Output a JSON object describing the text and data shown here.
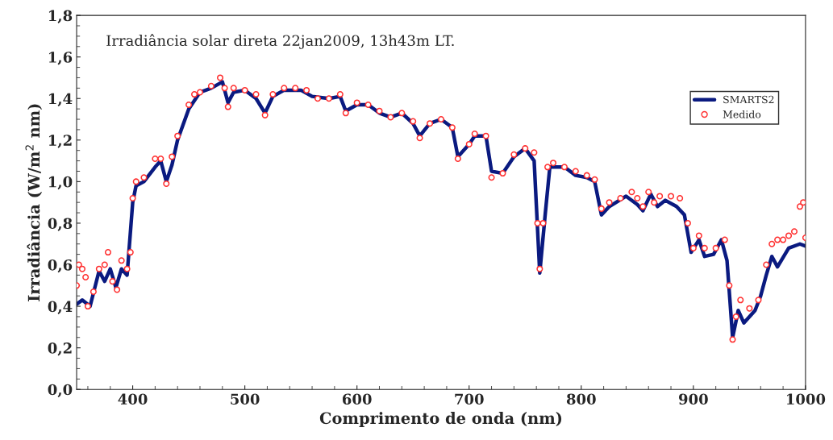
{
  "chart_data": {
    "type": "line",
    "title": "Irradiância solar direta 22jan2009, 13h43m LT.",
    "xlabel": "Comprimento de onda (nm)",
    "ylabel": "Irradiância (W/m$^{2}$ nm)",
    "xlim": [
      350,
      1000
    ],
    "xticks": [
      400,
      500,
      600,
      700,
      800,
      900,
      1000
    ],
    "ylim": [
      0,
      1.8
    ],
    "yticks": [
      {
        "value": 0,
        "label": "0,0"
      },
      {
        "value": 0.2,
        "label": "0,2"
      },
      {
        "value": 0.4,
        "label": "0,4"
      },
      {
        "value": 0.6,
        "label": "0,6"
      },
      {
        "value": 0.8,
        "label": "0,8"
      },
      {
        "value": 1.0,
        "label": "1,0"
      },
      {
        "value": 1.2,
        "label": "1,2"
      },
      {
        "value": 1.4,
        "label": "1,4"
      },
      {
        "value": 1.6,
        "label": "1,6"
      },
      {
        "value": 1.8,
        "label": "1,8"
      }
    ],
    "grid": false,
    "legend": "top right",
    "series": [
      {
        "name": "SMARTS2",
        "color": "#0a1a80",
        "line_style": "solid",
        "x": [
          350,
          355,
          362,
          370,
          375,
          380,
          385,
          390,
          395,
          400,
          403,
          410,
          420,
          425,
          430,
          435,
          440,
          450,
          460,
          470,
          480,
          485,
          490,
          500,
          510,
          518,
          525,
          535,
          550,
          560,
          575,
          585,
          590,
          600,
          610,
          620,
          630,
          640,
          650,
          656,
          665,
          675,
          685,
          690,
          700,
          705,
          715,
          720,
          730,
          740,
          750,
          758,
          763,
          768,
          772,
          785,
          795,
          805,
          812,
          818,
          825,
          840,
          850,
          855,
          862,
          868,
          875,
          885,
          892,
          898,
          905,
          910,
          918,
          925,
          930,
          935,
          940,
          945,
          955,
          960,
          965,
          970,
          975,
          985,
          995,
          1000
        ],
        "values": [
          0.41,
          0.43,
          0.4,
          0.57,
          0.52,
          0.58,
          0.49,
          0.58,
          0.55,
          0.9,
          0.98,
          1.0,
          1.07,
          1.1,
          1.0,
          1.08,
          1.2,
          1.35,
          1.43,
          1.45,
          1.48,
          1.38,
          1.43,
          1.44,
          1.4,
          1.33,
          1.41,
          1.44,
          1.44,
          1.41,
          1.4,
          1.41,
          1.34,
          1.37,
          1.37,
          1.33,
          1.31,
          1.33,
          1.28,
          1.22,
          1.28,
          1.3,
          1.26,
          1.12,
          1.18,
          1.22,
          1.22,
          1.05,
          1.04,
          1.12,
          1.16,
          1.1,
          0.56,
          0.85,
          1.07,
          1.07,
          1.03,
          1.02,
          1.0,
          0.84,
          0.88,
          0.93,
          0.89,
          0.86,
          0.94,
          0.88,
          0.91,
          0.88,
          0.84,
          0.66,
          0.72,
          0.64,
          0.65,
          0.72,
          0.62,
          0.25,
          0.38,
          0.32,
          0.38,
          0.45,
          0.55,
          0.64,
          0.59,
          0.68,
          0.7,
          0.69
        ]
      },
      {
        "name": "Medido",
        "type": "scatter",
        "color": "#ff3030",
        "marker": "circle",
        "x": [
          350,
          352,
          355,
          358,
          360,
          365,
          370,
          375,
          378,
          382,
          386,
          390,
          395,
          398,
          400,
          403,
          410,
          420,
          425,
          430,
          435,
          440,
          450,
          455,
          460,
          470,
          478,
          482,
          485,
          490,
          500,
          510,
          518,
          525,
          535,
          545,
          555,
          565,
          575,
          585,
          590,
          600,
          610,
          620,
          630,
          640,
          650,
          656,
          665,
          675,
          685,
          690,
          700,
          705,
          715,
          720,
          730,
          740,
          750,
          758,
          761,
          763,
          766,
          770,
          775,
          785,
          795,
          805,
          812,
          818,
          825,
          835,
          845,
          850,
          855,
          860,
          865,
          870,
          880,
          888,
          895,
          900,
          905,
          910,
          920,
          928,
          932,
          935,
          938,
          942,
          950,
          958,
          965,
          970,
          975,
          980,
          985,
          990,
          995,
          998,
          1000
        ],
        "values": [
          0.5,
          0.6,
          0.58,
          0.54,
          0.4,
          0.47,
          0.58,
          0.6,
          0.66,
          0.52,
          0.48,
          0.62,
          0.58,
          0.66,
          0.92,
          1.0,
          1.02,
          1.11,
          1.11,
          0.99,
          1.12,
          1.22,
          1.37,
          1.42,
          1.43,
          1.46,
          1.5,
          1.45,
          1.36,
          1.45,
          1.44,
          1.42,
          1.32,
          1.42,
          1.45,
          1.45,
          1.44,
          1.4,
          1.4,
          1.42,
          1.33,
          1.38,
          1.37,
          1.34,
          1.31,
          1.33,
          1.29,
          1.21,
          1.28,
          1.3,
          1.26,
          1.11,
          1.18,
          1.23,
          1.22,
          1.02,
          1.04,
          1.13,
          1.16,
          1.14,
          0.8,
          0.58,
          0.8,
          1.07,
          1.09,
          1.07,
          1.05,
          1.03,
          1.01,
          0.87,
          0.9,
          0.92,
          0.95,
          0.92,
          0.88,
          0.95,
          0.9,
          0.93,
          0.93,
          0.92,
          0.8,
          0.68,
          0.74,
          0.68,
          0.68,
          0.72,
          0.5,
          0.24,
          0.35,
          0.43,
          0.39,
          0.43,
          0.6,
          0.7,
          0.72,
          0.72,
          0.74,
          0.76,
          0.88,
          0.9,
          0.73
        ]
      }
    ]
  }
}
